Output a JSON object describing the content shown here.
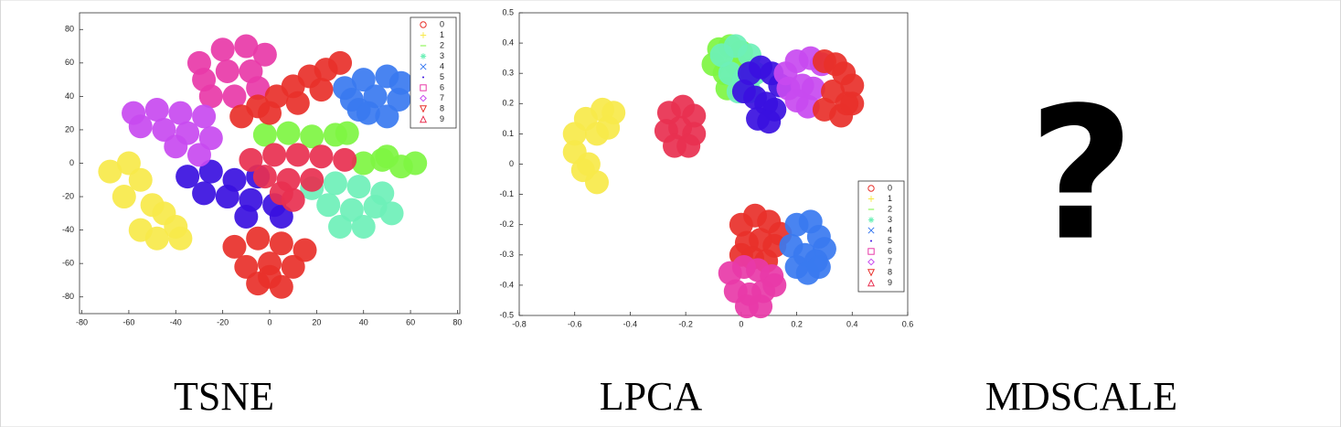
{
  "chart_data": [
    {
      "type": "scatter",
      "title": "TSNE",
      "xlim": [
        -81,
        81
      ],
      "ylim": [
        -90,
        90
      ],
      "xticks": [
        -80,
        -60,
        -40,
        -20,
        0,
        20,
        40,
        60,
        80
      ],
      "yticks": [
        -80,
        -60,
        -40,
        -20,
        0,
        20,
        40,
        60,
        80
      ],
      "legend": "northeast",
      "series": [
        {
          "name": "0",
          "color": "#e8302a",
          "marker": "circle",
          "x": [
            -15,
            -5,
            5,
            15,
            -10,
            0,
            10,
            -5,
            5,
            0
          ],
          "y": [
            -50,
            -45,
            -48,
            -52,
            -62,
            -60,
            -62,
            -72,
            -74,
            -68
          ]
        },
        {
          "name": "1",
          "color": "#f7e94a",
          "marker": "plus",
          "x": [
            -68,
            -60,
            -55,
            -62,
            -50,
            -45,
            -40,
            -48,
            -55,
            -38
          ],
          "y": [
            -5,
            0,
            -10,
            -20,
            -25,
            -30,
            -38,
            -45,
            -40,
            -45
          ]
        },
        {
          "name": "2",
          "color": "#7ef542",
          "marker": "line",
          "x": [
            -2,
            8,
            18,
            28,
            33,
            40,
            48,
            56,
            62,
            50
          ],
          "y": [
            17,
            18,
            16,
            17,
            18,
            0,
            2,
            -2,
            0,
            4
          ]
        },
        {
          "name": "3",
          "color": "#6ef0b8",
          "marker": "asterisk",
          "x": [
            18,
            28,
            38,
            48,
            25,
            35,
            45,
            30,
            40,
            52
          ],
          "y": [
            -15,
            -12,
            -14,
            -18,
            -25,
            -28,
            -26,
            -38,
            -38,
            -30
          ]
        },
        {
          "name": "4",
          "color": "#3a7af0",
          "marker": "x",
          "x": [
            32,
            40,
            50,
            56,
            35,
            45,
            55,
            42,
            50,
            38
          ],
          "y": [
            45,
            50,
            52,
            48,
            38,
            40,
            38,
            30,
            28,
            32
          ]
        },
        {
          "name": "5",
          "color": "#3a10e0",
          "marker": "dot",
          "x": [
            -35,
            -25,
            -15,
            -5,
            -28,
            -18,
            -8,
            2,
            -10,
            5
          ],
          "y": [
            -8,
            -5,
            -10,
            -8,
            -18,
            -20,
            -22,
            -25,
            -32,
            -32
          ]
        },
        {
          "name": "6",
          "color": "#e83aa8",
          "marker": "square",
          "x": [
            -30,
            -20,
            -10,
            -2,
            -28,
            -18,
            -8,
            -25,
            -15,
            -5
          ],
          "y": [
            60,
            68,
            70,
            65,
            50,
            55,
            55,
            40,
            40,
            45
          ]
        },
        {
          "name": "7",
          "color": "#c84af0",
          "marker": "diamond",
          "x": [
            -58,
            -48,
            -38,
            -28,
            -55,
            -45,
            -35,
            -25,
            -40,
            -30
          ],
          "y": [
            30,
            32,
            30,
            28,
            22,
            20,
            18,
            15,
            10,
            5
          ]
        },
        {
          "name": "8",
          "color": "#e8302a",
          "marker": "triangle-down",
          "x": [
            -12,
            -5,
            3,
            10,
            17,
            24,
            30,
            0,
            12,
            22
          ],
          "y": [
            28,
            34,
            40,
            46,
            52,
            56,
            60,
            30,
            36,
            44
          ]
        },
        {
          "name": "9",
          "color": "#e83050",
          "marker": "triangle-up",
          "x": [
            -8,
            2,
            12,
            22,
            32,
            -2,
            8,
            18,
            5,
            10
          ],
          "y": [
            2,
            5,
            5,
            4,
            2,
            -8,
            -10,
            -10,
            -18,
            -22
          ]
        }
      ]
    },
    {
      "type": "scatter",
      "title": "LPCA",
      "xlim": [
        -0.8,
        0.6
      ],
      "ylim": [
        -0.5,
        0.5
      ],
      "xticks": [
        -0.8,
        -0.6,
        -0.4,
        -0.2,
        0,
        0.2,
        0.4,
        0.6
      ],
      "yticks": [
        -0.5,
        -0.4,
        -0.3,
        -0.2,
        -0.1,
        0,
        0.1,
        0.2,
        0.3,
        0.4,
        0.5
      ],
      "legend": "southeast",
      "series": [
        {
          "name": "0",
          "color": "#e8302a",
          "marker": "circle",
          "x": [
            0.0,
            0.05,
            0.1,
            0.14,
            0.02,
            0.07,
            0.12,
            0.04,
            0.09,
            0.0
          ],
          "y": [
            -0.2,
            -0.17,
            -0.19,
            -0.23,
            -0.26,
            -0.25,
            -0.27,
            -0.31,
            -0.32,
            -0.3
          ]
        },
        {
          "name": "1",
          "color": "#f7e94a",
          "marker": "plus",
          "x": [
            -0.5,
            -0.56,
            -0.6,
            -0.6,
            -0.57,
            -0.52,
            -0.46,
            -0.48,
            -0.55,
            -0.52
          ],
          "y": [
            0.18,
            0.15,
            0.1,
            0.04,
            -0.02,
            -0.06,
            0.17,
            0.12,
            0.0,
            0.1
          ]
        },
        {
          "name": "2",
          "color": "#7ef542",
          "marker": "line",
          "x": [
            -0.1,
            -0.08,
            -0.04,
            0.0,
            -0.06,
            -0.02,
            0.02,
            -0.05
          ],
          "y": [
            0.33,
            0.38,
            0.39,
            0.37,
            0.3,
            0.33,
            0.3,
            0.25
          ]
        },
        {
          "name": "3",
          "color": "#6ef0b8",
          "marker": "asterisk",
          "x": [
            -0.07,
            -0.02,
            0.03,
            -0.04,
            0.01,
            0.05,
            -0.01,
            0.03
          ],
          "y": [
            0.36,
            0.39,
            0.36,
            0.3,
            0.28,
            0.3,
            0.24,
            0.24
          ]
        },
        {
          "name": "4",
          "color": "#3a7af0",
          "marker": "x",
          "x": [
            0.2,
            0.25,
            0.28,
            0.3,
            0.18,
            0.23,
            0.27,
            0.2,
            0.24,
            0.28
          ],
          "y": [
            -0.2,
            -0.19,
            -0.24,
            -0.28,
            -0.27,
            -0.3,
            -0.32,
            -0.34,
            -0.36,
            -0.34
          ]
        },
        {
          "name": "5",
          "color": "#3a10e0",
          "marker": "dot",
          "x": [
            0.03,
            0.07,
            0.11,
            0.14,
            0.01,
            0.05,
            0.09,
            0.12,
            0.06,
            0.1
          ],
          "y": [
            0.3,
            0.32,
            0.3,
            0.26,
            0.24,
            0.22,
            0.2,
            0.18,
            0.15,
            0.14
          ]
        },
        {
          "name": "6",
          "color": "#e83aa8",
          "marker": "square",
          "x": [
            -0.04,
            0.01,
            0.06,
            0.11,
            -0.02,
            0.03,
            0.08,
            0.12,
            0.02,
            0.07
          ],
          "y": [
            -0.36,
            -0.34,
            -0.35,
            -0.37,
            -0.42,
            -0.43,
            -0.42,
            -0.4,
            -0.47,
            -0.47
          ]
        },
        {
          "name": "7",
          "color": "#c84af0",
          "marker": "diamond",
          "x": [
            0.16,
            0.2,
            0.25,
            0.29,
            0.17,
            0.22,
            0.26,
            0.2,
            0.24
          ],
          "y": [
            0.3,
            0.34,
            0.35,
            0.33,
            0.25,
            0.26,
            0.25,
            0.21,
            0.19
          ]
        },
        {
          "name": "8",
          "color": "#e8302a",
          "marker": "triangle-down",
          "x": [
            0.3,
            0.34,
            0.37,
            0.4,
            0.33,
            0.38,
            0.3,
            0.36,
            0.4
          ],
          "y": [
            0.34,
            0.33,
            0.3,
            0.26,
            0.24,
            0.2,
            0.18,
            0.16,
            0.2
          ]
        },
        {
          "name": "9",
          "color": "#e83050",
          "marker": "triangle-up",
          "x": [
            -0.26,
            -0.21,
            -0.17,
            -0.27,
            -0.22,
            -0.17,
            -0.24,
            -0.19
          ],
          "y": [
            0.17,
            0.19,
            0.16,
            0.11,
            0.12,
            0.1,
            0.06,
            0.06
          ]
        }
      ]
    }
  ],
  "mdscale": {
    "label": "MDSCALE",
    "placeholder": "?"
  }
}
